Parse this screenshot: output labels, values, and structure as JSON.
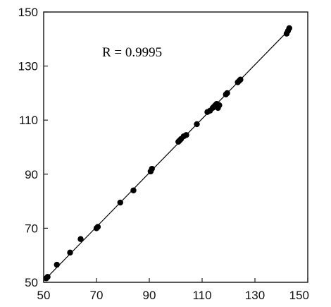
{
  "chart_data": {
    "type": "scatter",
    "title": "",
    "xlabel": "",
    "ylabel": "",
    "xlim": [
      50,
      150
    ],
    "ylim": [
      50,
      150
    ],
    "x_ticks": [
      50,
      70,
      90,
      110,
      130,
      150
    ],
    "y_ticks": [
      50,
      70,
      90,
      110,
      130,
      150
    ],
    "grid": false,
    "legend": "none",
    "annotation": "R = 0.9995",
    "fit_line": {
      "from": [
        50,
        50.5
      ],
      "to": [
        144,
        144.5
      ]
    },
    "colors": {
      "points": "#000000",
      "line": "#000000",
      "frame": "#222222"
    },
    "series": [
      {
        "x": [
          51,
          51.5,
          55,
          60,
          64,
          70,
          70.5,
          79,
          84,
          90.5,
          91,
          101,
          101.5,
          102,
          103,
          104,
          108,
          112,
          113,
          114,
          114.5,
          115,
          115.5,
          116,
          116.5,
          119,
          119.5,
          123.5,
          124,
          124.5,
          142,
          142.5,
          143
        ],
        "y": [
          51.5,
          52,
          56.5,
          61,
          66,
          70,
          70.5,
          79.5,
          84,
          91,
          92,
          102,
          102.5,
          103,
          104,
          104.5,
          108.5,
          113,
          113.5,
          114.5,
          115,
          115.5,
          116,
          114.5,
          115.5,
          119.5,
          120,
          124,
          124.5,
          125,
          142,
          143,
          144
        ]
      }
    ]
  }
}
